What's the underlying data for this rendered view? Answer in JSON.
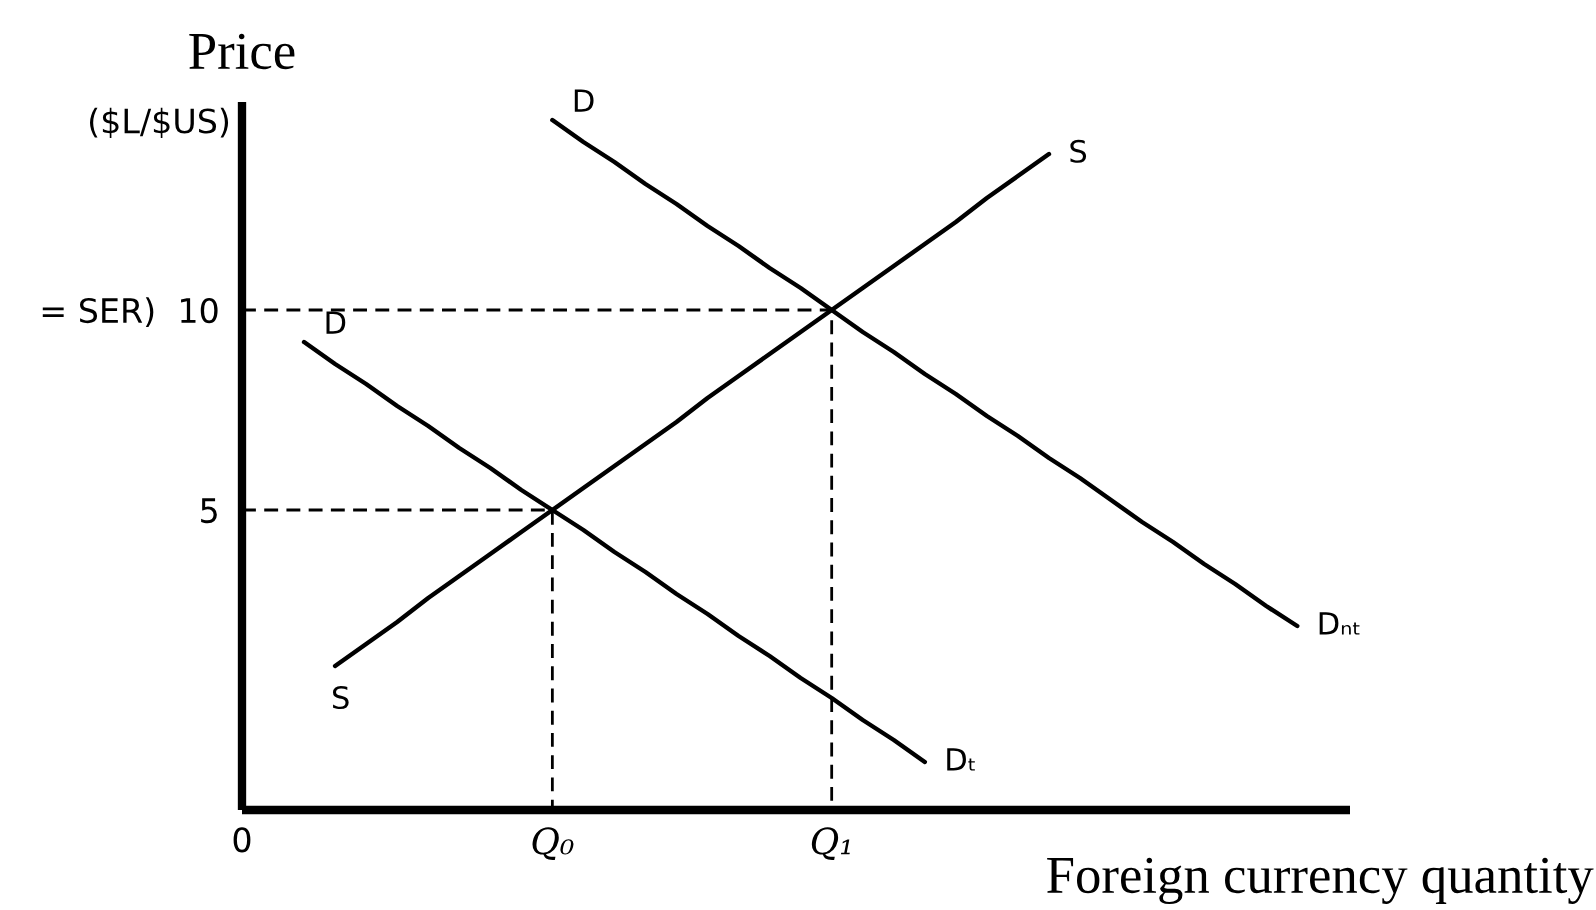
{
  "chart_data": {
    "type": "line",
    "ylabel": "Price",
    "xlabel": "Foreign currency quantity",
    "annotations": [
      "($L/$US)",
      "S",
      "D",
      "D"
    ],
    "categories": [
      "0",
      null,
      null,
      null,
      null,
      null,
      null,
      null,
      null,
      null,
      "Q₀",
      null,
      null,
      null,
      null,
      null,
      null,
      null,
      null,
      "Q₁",
      null,
      null,
      null,
      null,
      null,
      null,
      null,
      null,
      null,
      null,
      null,
      null,
      null,
      null,
      null,
      null
    ],
    "ylim": [
      -2.5,
      15.2
    ],
    "yticks": [
      5,
      {
        "value": 10,
        "label": "= SER)  10"
      }
    ],
    "series": [
      {
        "name": "S",
        "color": "#000000",
        "values": [
          null,
          null,
          null,
          1.1,
          1.65,
          2.2,
          2.8,
          3.35,
          3.9,
          4.45,
          5,
          5.55,
          6.1,
          6.65,
          7.2,
          7.8,
          8.35,
          8.9,
          9.45,
          10,
          10.55,
          11.1,
          11.65,
          12.2,
          12.8,
          13.35,
          13.9,
          null,
          null,
          null,
          null,
          null,
          null,
          null,
          null,
          null
        ]
      },
      {
        "name": "Dₙₜ",
        "color": "#000000",
        "values": [
          null,
          null,
          null,
          null,
          null,
          null,
          null,
          null,
          null,
          null,
          14.75,
          14.2,
          13.7,
          13.15,
          12.65,
          12.1,
          11.6,
          11.05,
          10.55,
          10,
          9.45,
          8.95,
          8.4,
          7.9,
          7.35,
          6.85,
          6.3,
          5.8,
          5.25,
          4.7,
          4.2,
          3.65,
          3.15,
          2.6,
          2.1,
          null
        ]
      },
      {
        "name": "Dₜ",
        "color": "#000000",
        "values": [
          null,
          null,
          9.2,
          8.65,
          8.15,
          7.6,
          7.1,
          6.55,
          6.05,
          5.5,
          5,
          4.5,
          3.95,
          3.45,
          2.9,
          2.4,
          1.85,
          1.35,
          0.8,
          0.3,
          -0.25,
          -0.75,
          -1.3,
          null,
          null,
          null,
          null,
          null,
          null,
          null,
          null,
          null,
          null,
          null,
          null,
          null
        ]
      },
      {
        "color": "#000000",
        "x": [
          "0",
          "Q₀",
          "Q₀"
        ],
        "values": [
          5,
          5,
          -2.5
        ],
        "line_style": "dashed"
      },
      {
        "color": "#000000",
        "x": [
          "0",
          "Q₁",
          "Q₁"
        ],
        "values": [
          10,
          10,
          -2.5
        ],
        "line_style": "dashed"
      }
    ],
    "line_style": "solid",
    "marker": "none",
    "grid": false
  }
}
